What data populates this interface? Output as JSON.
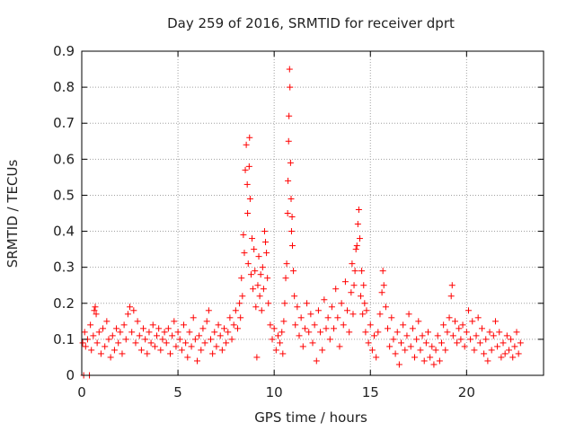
{
  "chart_data": {
    "type": "scatter",
    "title": "Day 259 of 2016, SRMTID for receiver dprt",
    "xlabel": "GPS time / hours",
    "ylabel": "SRMTID / TECUs",
    "xlim": [
      0,
      24
    ],
    "ylim": [
      0,
      0.9
    ],
    "xticks": [
      0,
      5,
      10,
      15,
      20
    ],
    "yticks": [
      0,
      0.1,
      0.2,
      0.3,
      0.4,
      0.5,
      0.6,
      0.7,
      0.8,
      0.9
    ],
    "xtick_labels": [
      "0",
      "5",
      "10",
      "15",
      "20"
    ],
    "ytick_labels": [
      "0",
      "0.1",
      "0.2",
      "0.3",
      "0.4",
      "0.5",
      "0.6",
      "0.7",
      "0.8",
      "0.9"
    ],
    "grid": true,
    "marker": "+",
    "color": "#ff0000",
    "series": [
      {
        "name": "SRMTID",
        "points": [
          [
            0.05,
            0.09
          ],
          [
            0.1,
            0.0
          ],
          [
            0.15,
            0.12
          ],
          [
            0.2,
            0.08
          ],
          [
            0.3,
            0.1
          ],
          [
            0.4,
            0.0
          ],
          [
            0.45,
            0.14
          ],
          [
            0.5,
            0.07
          ],
          [
            0.6,
            0.11
          ],
          [
            0.65,
            0.18
          ],
          [
            0.7,
            0.19
          ],
          [
            0.75,
            0.17
          ],
          [
            0.8,
            0.09
          ],
          [
            0.9,
            0.12
          ],
          [
            1.0,
            0.06
          ],
          [
            1.1,
            0.13
          ],
          [
            1.2,
            0.08
          ],
          [
            1.3,
            0.15
          ],
          [
            1.4,
            0.1
          ],
          [
            1.5,
            0.05
          ],
          [
            1.6,
            0.11
          ],
          [
            1.7,
            0.07
          ],
          [
            1.8,
            0.13
          ],
          [
            1.9,
            0.09
          ],
          [
            2.0,
            0.12
          ],
          [
            2.1,
            0.06
          ],
          [
            2.2,
            0.14
          ],
          [
            2.3,
            0.1
          ],
          [
            2.4,
            0.17
          ],
          [
            2.5,
            0.19
          ],
          [
            2.6,
            0.12
          ],
          [
            2.7,
            0.18
          ],
          [
            2.8,
            0.09
          ],
          [
            2.9,
            0.15
          ],
          [
            3.0,
            0.11
          ],
          [
            3.1,
            0.07
          ],
          [
            3.2,
            0.13
          ],
          [
            3.3,
            0.1
          ],
          [
            3.4,
            0.06
          ],
          [
            3.5,
            0.12
          ],
          [
            3.6,
            0.09
          ],
          [
            3.7,
            0.14
          ],
          [
            3.8,
            0.08
          ],
          [
            3.9,
            0.11
          ],
          [
            4.0,
            0.13
          ],
          [
            4.1,
            0.07
          ],
          [
            4.2,
            0.1
          ],
          [
            4.3,
            0.12
          ],
          [
            4.4,
            0.09
          ],
          [
            4.5,
            0.13
          ],
          [
            4.6,
            0.06
          ],
          [
            4.7,
            0.11
          ],
          [
            4.8,
            0.15
          ],
          [
            4.9,
            0.08
          ],
          [
            5.0,
            0.12
          ],
          [
            5.1,
            0.1
          ],
          [
            5.2,
            0.07
          ],
          [
            5.3,
            0.14
          ],
          [
            5.4,
            0.09
          ],
          [
            5.5,
            0.05
          ],
          [
            5.6,
            0.12
          ],
          [
            5.7,
            0.08
          ],
          [
            5.8,
            0.16
          ],
          [
            5.9,
            0.1
          ],
          [
            6.0,
            0.04
          ],
          [
            6.1,
            0.11
          ],
          [
            6.2,
            0.07
          ],
          [
            6.3,
            0.13
          ],
          [
            6.4,
            0.09
          ],
          [
            6.5,
            0.15
          ],
          [
            6.6,
            0.18
          ],
          [
            6.7,
            0.1
          ],
          [
            6.8,
            0.06
          ],
          [
            6.9,
            0.12
          ],
          [
            7.0,
            0.08
          ],
          [
            7.1,
            0.14
          ],
          [
            7.2,
            0.11
          ],
          [
            7.3,
            0.07
          ],
          [
            7.4,
            0.13
          ],
          [
            7.5,
            0.09
          ],
          [
            7.6,
            0.12
          ],
          [
            7.7,
            0.16
          ],
          [
            7.8,
            0.1
          ],
          [
            7.9,
            0.14
          ],
          [
            8.0,
            0.18
          ],
          [
            8.1,
            0.13
          ],
          [
            8.2,
            0.2
          ],
          [
            8.25,
            0.16
          ],
          [
            8.3,
            0.27
          ],
          [
            8.35,
            0.22
          ],
          [
            8.4,
            0.39
          ],
          [
            8.45,
            0.34
          ],
          [
            8.5,
            0.57
          ],
          [
            8.55,
            0.64
          ],
          [
            8.6,
            0.53
          ],
          [
            8.62,
            0.45
          ],
          [
            8.65,
            0.31
          ],
          [
            8.7,
            0.58
          ],
          [
            8.72,
            0.66
          ],
          [
            8.75,
            0.49
          ],
          [
            8.8,
            0.28
          ],
          [
            8.85,
            0.38
          ],
          [
            8.9,
            0.24
          ],
          [
            8.95,
            0.35
          ],
          [
            9.0,
            0.29
          ],
          [
            9.05,
            0.19
          ],
          [
            9.1,
            0.05
          ],
          [
            9.15,
            0.25
          ],
          [
            9.2,
            0.33
          ],
          [
            9.25,
            0.22
          ],
          [
            9.3,
            0.28
          ],
          [
            9.35,
            0.18
          ],
          [
            9.4,
            0.3
          ],
          [
            9.45,
            0.24
          ],
          [
            9.5,
            0.4
          ],
          [
            9.55,
            0.37
          ],
          [
            9.6,
            0.34
          ],
          [
            9.65,
            0.27
          ],
          [
            9.7,
            0.2
          ],
          [
            9.8,
            0.14
          ],
          [
            9.9,
            0.1
          ],
          [
            10.0,
            0.13
          ],
          [
            10.1,
            0.07
          ],
          [
            10.2,
            0.11
          ],
          [
            10.3,
            0.09
          ],
          [
            10.4,
            0.12
          ],
          [
            10.45,
            0.06
          ],
          [
            10.5,
            0.15
          ],
          [
            10.55,
            0.2
          ],
          [
            10.6,
            0.27
          ],
          [
            10.65,
            0.31
          ],
          [
            10.7,
            0.45
          ],
          [
            10.72,
            0.54
          ],
          [
            10.75,
            0.65
          ],
          [
            10.77,
            0.72
          ],
          [
            10.8,
            0.85
          ],
          [
            10.82,
            0.8
          ],
          [
            10.85,
            0.59
          ],
          [
            10.88,
            0.49
          ],
          [
            10.9,
            0.4
          ],
          [
            10.93,
            0.44
          ],
          [
            10.95,
            0.36
          ],
          [
            11.0,
            0.29
          ],
          [
            11.05,
            0.22
          ],
          [
            11.1,
            0.14
          ],
          [
            11.2,
            0.19
          ],
          [
            11.3,
            0.11
          ],
          [
            11.4,
            0.16
          ],
          [
            11.5,
            0.08
          ],
          [
            11.6,
            0.13
          ],
          [
            11.7,
            0.2
          ],
          [
            11.8,
            0.12
          ],
          [
            11.9,
            0.17
          ],
          [
            12.0,
            0.09
          ],
          [
            12.1,
            0.14
          ],
          [
            12.2,
            0.04
          ],
          [
            12.3,
            0.18
          ],
          [
            12.4,
            0.12
          ],
          [
            12.5,
            0.07
          ],
          [
            12.6,
            0.21
          ],
          [
            12.7,
            0.13
          ],
          [
            12.8,
            0.16
          ],
          [
            12.9,
            0.1
          ],
          [
            13.0,
            0.19
          ],
          [
            13.1,
            0.13
          ],
          [
            13.2,
            0.24
          ],
          [
            13.3,
            0.16
          ],
          [
            13.4,
            0.08
          ],
          [
            13.5,
            0.2
          ],
          [
            13.6,
            0.14
          ],
          [
            13.7,
            0.26
          ],
          [
            13.8,
            0.18
          ],
          [
            13.9,
            0.12
          ],
          [
            14.0,
            0.23
          ],
          [
            14.05,
            0.31
          ],
          [
            14.1,
            0.17
          ],
          [
            14.15,
            0.25
          ],
          [
            14.2,
            0.29
          ],
          [
            14.25,
            0.35
          ],
          [
            14.3,
            0.36
          ],
          [
            14.35,
            0.42
          ],
          [
            14.4,
            0.46
          ],
          [
            14.45,
            0.38
          ],
          [
            14.5,
            0.22
          ],
          [
            14.55,
            0.29
          ],
          [
            14.6,
            0.17
          ],
          [
            14.65,
            0.25
          ],
          [
            14.7,
            0.2
          ],
          [
            14.75,
            0.12
          ],
          [
            14.8,
            0.18
          ],
          [
            14.9,
            0.09
          ],
          [
            15.0,
            0.14
          ],
          [
            15.1,
            0.07
          ],
          [
            15.2,
            0.11
          ],
          [
            15.3,
            0.05
          ],
          [
            15.4,
            0.12
          ],
          [
            15.5,
            0.17
          ],
          [
            15.6,
            0.23
          ],
          [
            15.65,
            0.29
          ],
          [
            15.7,
            0.25
          ],
          [
            15.8,
            0.19
          ],
          [
            15.9,
            0.13
          ],
          [
            16.0,
            0.08
          ],
          [
            16.1,
            0.16
          ],
          [
            16.2,
            0.1
          ],
          [
            16.3,
            0.06
          ],
          [
            16.4,
            0.12
          ],
          [
            16.5,
            0.03
          ],
          [
            16.6,
            0.09
          ],
          [
            16.7,
            0.14
          ],
          [
            16.8,
            0.07
          ],
          [
            16.9,
            0.11
          ],
          [
            17.0,
            0.17
          ],
          [
            17.1,
            0.08
          ],
          [
            17.2,
            0.13
          ],
          [
            17.3,
            0.05
          ],
          [
            17.4,
            0.1
          ],
          [
            17.5,
            0.15
          ],
          [
            17.6,
            0.07
          ],
          [
            17.7,
            0.11
          ],
          [
            17.8,
            0.04
          ],
          [
            17.9,
            0.09
          ],
          [
            18.0,
            0.12
          ],
          [
            18.1,
            0.05
          ],
          [
            18.2,
            0.08
          ],
          [
            18.3,
            0.03
          ],
          [
            18.4,
            0.07
          ],
          [
            18.5,
            0.11
          ],
          [
            18.6,
            0.04
          ],
          [
            18.7,
            0.09
          ],
          [
            18.8,
            0.14
          ],
          [
            18.9,
            0.07
          ],
          [
            19.0,
            0.12
          ],
          [
            19.1,
            0.16
          ],
          [
            19.2,
            0.22
          ],
          [
            19.25,
            0.25
          ],
          [
            19.3,
            0.11
          ],
          [
            19.4,
            0.15
          ],
          [
            19.5,
            0.09
          ],
          [
            19.6,
            0.13
          ],
          [
            19.7,
            0.1
          ],
          [
            19.8,
            0.14
          ],
          [
            19.9,
            0.08
          ],
          [
            20.0,
            0.12
          ],
          [
            20.1,
            0.18
          ],
          [
            20.2,
            0.1
          ],
          [
            20.3,
            0.15
          ],
          [
            20.4,
            0.07
          ],
          [
            20.5,
            0.11
          ],
          [
            20.6,
            0.16
          ],
          [
            20.7,
            0.09
          ],
          [
            20.8,
            0.13
          ],
          [
            20.9,
            0.06
          ],
          [
            21.0,
            0.1
          ],
          [
            21.1,
            0.04
          ],
          [
            21.2,
            0.12
          ],
          [
            21.3,
            0.07
          ],
          [
            21.4,
            0.11
          ],
          [
            21.5,
            0.15
          ],
          [
            21.6,
            0.08
          ],
          [
            21.7,
            0.12
          ],
          [
            21.8,
            0.05
          ],
          [
            21.9,
            0.09
          ],
          [
            22.0,
            0.06
          ],
          [
            22.1,
            0.11
          ],
          [
            22.2,
            0.07
          ],
          [
            22.3,
            0.1
          ],
          [
            22.4,
            0.05
          ],
          [
            22.5,
            0.08
          ],
          [
            22.6,
            0.12
          ],
          [
            22.7,
            0.06
          ],
          [
            22.8,
            0.09
          ]
        ]
      }
    ]
  }
}
